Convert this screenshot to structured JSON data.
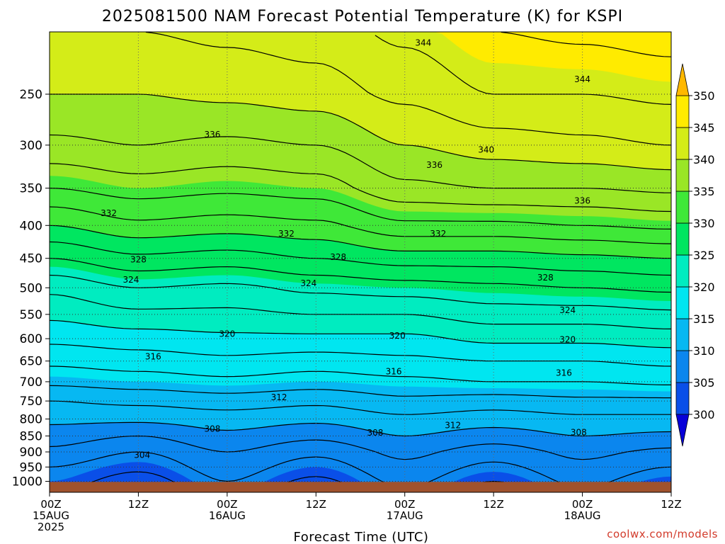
{
  "chart_data": {
    "type": "heatmap",
    "title": "2025081500 NAM Forecast Potential Temperature (K) for KSPI",
    "xlabel": "Forecast Time (UTC)",
    "ylabel": "",
    "credit": "coolwx.com/models",
    "x_range_hours": [
      0,
      84
    ],
    "y_range_hpa": [
      1040,
      200
    ],
    "y_scale": "log-pressure",
    "y_ticks": [
      250,
      300,
      350,
      400,
      450,
      500,
      550,
      600,
      650,
      700,
      750,
      800,
      850,
      900,
      950,
      1000
    ],
    "x_ticks": [
      {
        "hour": 0,
        "lines": [
          "00Z",
          "15AUG",
          "2025"
        ]
      },
      {
        "hour": 12,
        "lines": [
          "12Z"
        ]
      },
      {
        "hour": 24,
        "lines": [
          "00Z",
          "16AUG"
        ]
      },
      {
        "hour": 36,
        "lines": [
          "12Z"
        ]
      },
      {
        "hour": 48,
        "lines": [
          "00Z",
          "17AUG"
        ]
      },
      {
        "hour": 60,
        "lines": [
          "12Z"
        ]
      },
      {
        "hour": 72,
        "lines": [
          "00Z",
          "18AUG"
        ]
      },
      {
        "hour": 84,
        "lines": [
          "12Z"
        ]
      }
    ],
    "grid": true,
    "colorbar": {
      "levels": [
        300,
        305,
        310,
        315,
        320,
        325,
        330,
        335,
        340,
        345,
        350
      ],
      "colors": [
        "#0800d8",
        "#0a4fe8",
        "#0b86ee",
        "#07b8f2",
        "#00e6f0",
        "#00ecc0",
        "#00e660",
        "#3fe838",
        "#9ae626",
        "#d4ec18",
        "#ffeb00",
        "#ffb800"
      ],
      "extend": "both",
      "placement": "right"
    },
    "surface": {
      "pressure_hpa": 1002,
      "color": "#a0522d"
    },
    "profile_points": [
      {
        "hour": 0,
        "theta": {
          "1000": 305,
          "950": 306,
          "900": 307.5,
          "850": 309,
          "800": 310.5,
          "750": 312,
          "700": 314.5,
          "650": 316.5,
          "600": 318.5,
          "550": 320.5,
          "500": 322.5,
          "450": 326,
          "400": 330,
          "350": 334,
          "300": 337.5,
          "250": 340,
          "200": 342
        }
      },
      {
        "hour": 12,
        "theta": {
          "1000": 303,
          "950": 304.5,
          "900": 306,
          "850": 308,
          "800": 310.5,
          "750": 312.5,
          "700": 315,
          "650": 317,
          "600": 319,
          "550": 321.5,
          "500": 324,
          "450": 327.5,
          "400": 331.5,
          "350": 335,
          "300": 338,
          "250": 340,
          "200": 342
        }
      },
      {
        "hour": 24,
        "theta": {
          "1000": 306,
          "950": 307,
          "900": 308,
          "850": 309.5,
          "800": 311,
          "750": 313,
          "700": 315.5,
          "650": 317.5,
          "600": 319.5,
          "550": 321.5,
          "500": 323.5,
          "450": 327,
          "400": 331,
          "350": 334.5,
          "300": 337.5,
          "250": 340.5,
          "200": 342.5
        }
      },
      {
        "hour": 36,
        "theta": {
          "1000": 303.5,
          "950": 305,
          "900": 306.5,
          "850": 308.5,
          "800": 310.5,
          "750": 312.5,
          "700": 315,
          "650": 317,
          "600": 319.5,
          "550": 322,
          "500": 324.5,
          "450": 328,
          "400": 331.5,
          "350": 335,
          "300": 338,
          "250": 341,
          "200": 343
        }
      },
      {
        "hour": 48,
        "theta": {
          "1000": 306.5,
          "950": 307.5,
          "900": 308.5,
          "850": 310,
          "800": 311.5,
          "750": 313.5,
          "700": 315.5,
          "650": 317.5,
          "600": 319.5,
          "550": 322,
          "500": 325,
          "450": 329,
          "400": 333.5,
          "350": 337.5,
          "300": 340,
          "250": 342.5,
          "200": 344.5
        }
      },
      {
        "hour": 60,
        "theta": {
          "1000": 304,
          "950": 305.5,
          "900": 307,
          "850": 309,
          "800": 311,
          "750": 313,
          "700": 316,
          "650": 318,
          "600": 320.5,
          "550": 323,
          "500": 325.5,
          "450": 329,
          "400": 333.5,
          "350": 338,
          "300": 341,
          "250": 344,
          "200": 346
        }
      },
      {
        "hour": 72,
        "theta": {
          "1000": 306.5,
          "950": 307.5,
          "900": 308.5,
          "850": 310,
          "800": 311.5,
          "750": 313.5,
          "700": 316,
          "650": 318,
          "600": 320.5,
          "550": 323,
          "500": 326,
          "450": 329.5,
          "400": 334,
          "350": 338,
          "300": 341.5,
          "250": 344,
          "200": 346.5
        }
      },
      {
        "hour": 84,
        "theta": {
          "1000": 304.5,
          "950": 306,
          "900": 307.5,
          "850": 309.5,
          "800": 311.5,
          "750": 313.5,
          "700": 316.5,
          "650": 318.5,
          "600": 321,
          "550": 323.5,
          "500": 326.5,
          "450": 330,
          "400": 334.5,
          "350": 338.5,
          "300": 342,
          "250": 344.5,
          "200": 347
        }
      }
    ],
    "contour_labels": [
      {
        "text": "344",
        "hour": 50.5,
        "p": 208
      },
      {
        "text": "344",
        "hour": 72.0,
        "p": 237
      },
      {
        "text": "336",
        "hour": 22.0,
        "p": 289
      },
      {
        "text": "340",
        "hour": 59.0,
        "p": 305
      },
      {
        "text": "336",
        "hour": 52.0,
        "p": 322
      },
      {
        "text": "336",
        "hour": 72.0,
        "p": 366
      },
      {
        "text": "332",
        "hour": 8.0,
        "p": 383
      },
      {
        "text": "332",
        "hour": 32.0,
        "p": 412
      },
      {
        "text": "332",
        "hour": 52.5,
        "p": 412
      },
      {
        "text": "328",
        "hour": 12.0,
        "p": 452
      },
      {
        "text": "328",
        "hour": 39.0,
        "p": 448
      },
      {
        "text": "328",
        "hour": 67.0,
        "p": 482
      },
      {
        "text": "324",
        "hour": 11.0,
        "p": 486
      },
      {
        "text": "324",
        "hour": 35.0,
        "p": 492
      },
      {
        "text": "324",
        "hour": 70.0,
        "p": 542
      },
      {
        "text": "320",
        "hour": 24.0,
        "p": 590
      },
      {
        "text": "320",
        "hour": 47.0,
        "p": 594
      },
      {
        "text": "320",
        "hour": 70.0,
        "p": 602
      },
      {
        "text": "316",
        "hour": 14.0,
        "p": 640
      },
      {
        "text": "316",
        "hour": 46.5,
        "p": 675
      },
      {
        "text": "316",
        "hour": 69.5,
        "p": 678
      },
      {
        "text": "312",
        "hour": 31.0,
        "p": 740
      },
      {
        "text": "312",
        "hour": 54.5,
        "p": 818
      },
      {
        "text": "308",
        "hour": 22.0,
        "p": 829
      },
      {
        "text": "308",
        "hour": 44.0,
        "p": 840
      },
      {
        "text": "308",
        "hour": 71.5,
        "p": 839
      },
      {
        "text": "304",
        "hour": 12.5,
        "p": 910
      }
    ]
  }
}
